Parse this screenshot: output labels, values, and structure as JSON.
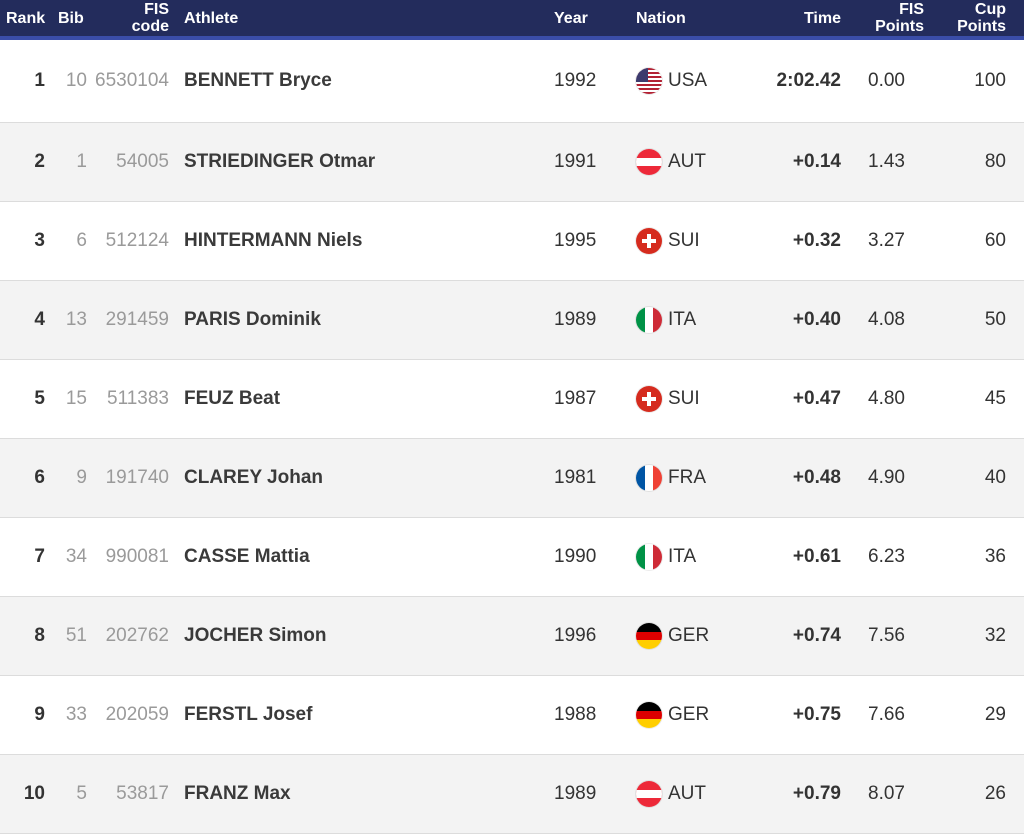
{
  "header": {
    "rank": "Rank",
    "bib": "Bib",
    "fis_code_1": "FIS",
    "fis_code_2": "code",
    "athlete": "Athlete",
    "year": "Year",
    "nation": "Nation",
    "time": "Time",
    "fis_points_1": "FIS",
    "fis_points_2": "Points",
    "cup_points_1": "Cup",
    "cup_points_2": "Points"
  },
  "rows": [
    {
      "rank": "1",
      "bib": "10",
      "fis_code": "6530104",
      "athlete": "BENNETT Bryce",
      "year": "1992",
      "flag_icon": "usa-flag-icon",
      "nation": "USA",
      "time": "2:02.42",
      "fis_points": "0.00",
      "cup_points": "100"
    },
    {
      "rank": "2",
      "bib": "1",
      "fis_code": "54005",
      "athlete": "STRIEDINGER Otmar",
      "year": "1991",
      "flag_icon": "austria-flag-icon",
      "nation": "AUT",
      "time": "+0.14",
      "fis_points": "1.43",
      "cup_points": "80"
    },
    {
      "rank": "3",
      "bib": "6",
      "fis_code": "512124",
      "athlete": "HINTERMANN Niels",
      "year": "1995",
      "flag_icon": "switzerland-flag-icon",
      "nation": "SUI",
      "time": "+0.32",
      "fis_points": "3.27",
      "cup_points": "60"
    },
    {
      "rank": "4",
      "bib": "13",
      "fis_code": "291459",
      "athlete": "PARIS Dominik",
      "year": "1989",
      "flag_icon": "italy-flag-icon",
      "nation": "ITA",
      "time": "+0.40",
      "fis_points": "4.08",
      "cup_points": "50"
    },
    {
      "rank": "5",
      "bib": "15",
      "fis_code": "511383",
      "athlete": "FEUZ Beat",
      "year": "1987",
      "flag_icon": "switzerland-flag-icon",
      "nation": "SUI",
      "time": "+0.47",
      "fis_points": "4.80",
      "cup_points": "45"
    },
    {
      "rank": "6",
      "bib": "9",
      "fis_code": "191740",
      "athlete": "CLAREY Johan",
      "year": "1981",
      "flag_icon": "france-flag-icon",
      "nation": "FRA",
      "time": "+0.48",
      "fis_points": "4.90",
      "cup_points": "40"
    },
    {
      "rank": "7",
      "bib": "34",
      "fis_code": "990081",
      "athlete": "CASSE Mattia",
      "year": "1990",
      "flag_icon": "italy-flag-icon",
      "nation": "ITA",
      "time": "+0.61",
      "fis_points": "6.23",
      "cup_points": "36"
    },
    {
      "rank": "8",
      "bib": "51",
      "fis_code": "202762",
      "athlete": "JOCHER Simon",
      "year": "1996",
      "flag_icon": "germany-flag-icon",
      "nation": "GER",
      "time": "+0.74",
      "fis_points": "7.56",
      "cup_points": "32"
    },
    {
      "rank": "9",
      "bib": "33",
      "fis_code": "202059",
      "athlete": "FERSTL Josef",
      "year": "1988",
      "flag_icon": "germany-flag-icon",
      "nation": "GER",
      "time": "+0.75",
      "fis_points": "7.66",
      "cup_points": "29"
    },
    {
      "rank": "10",
      "bib": "5",
      "fis_code": "53817",
      "athlete": "FRANZ Max",
      "year": "1989",
      "flag_icon": "austria-flag-icon",
      "nation": "AUT",
      "time": "+0.79",
      "fis_points": "8.07",
      "cup_points": "26"
    }
  ],
  "colors": {
    "header_bg": "#232c5c",
    "header_accent": "#3a4da8",
    "row_alt_bg": "#f3f3f3",
    "muted_text": "#9a9a9a"
  }
}
